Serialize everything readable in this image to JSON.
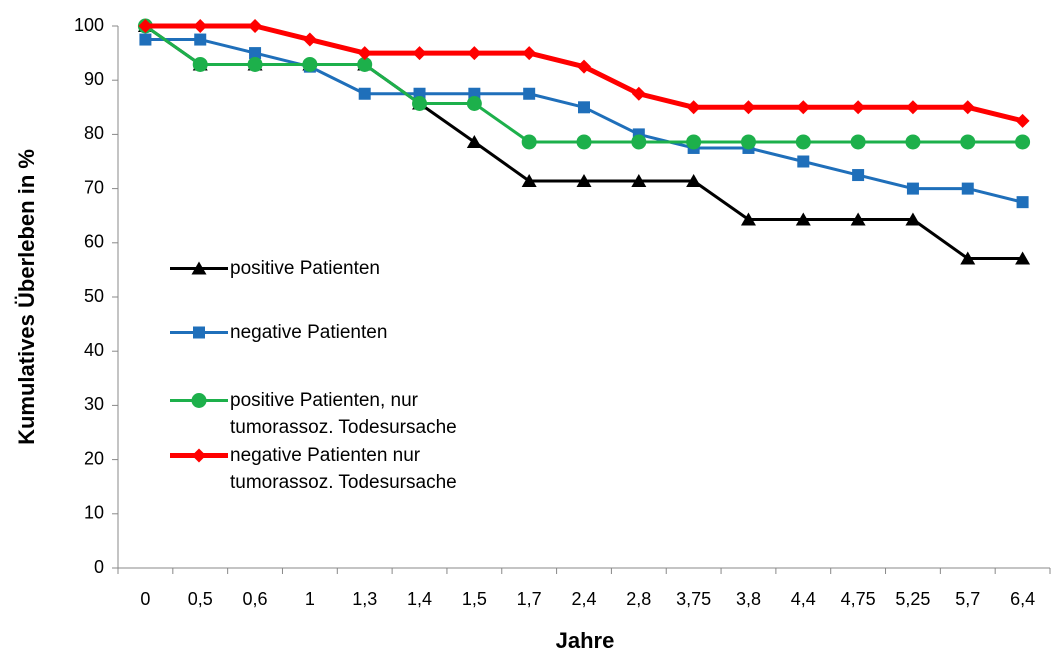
{
  "chart_data": {
    "type": "line",
    "xlabel": "Jahre",
    "ylabel": "Kumulatives Überleben in %",
    "categories": [
      "0",
      "0,5",
      "0,6",
      "1",
      "1,3",
      "1,4",
      "1,5",
      "1,7",
      "2,4",
      "2,8",
      "3,75",
      "3,8",
      "4,4",
      "4,75",
      "5,25",
      "5,7",
      "6,4"
    ],
    "series": [
      {
        "name": "positive Patienten",
        "color": "#000000",
        "marker": "triangle",
        "values": [
          100,
          92.9,
          92.9,
          92.9,
          92.9,
          85.7,
          78.6,
          71.4,
          71.4,
          71.4,
          71.4,
          64.3,
          64.3,
          64.3,
          64.3,
          57.1,
          57.1
        ]
      },
      {
        "name": "negative Patienten",
        "color": "#1f6fba",
        "marker": "square",
        "values": [
          97.5,
          97.5,
          95,
          92.5,
          87.5,
          87.5,
          87.5,
          87.5,
          85,
          80,
          77.5,
          77.5,
          75,
          72.5,
          70,
          70,
          67.5
        ]
      },
      {
        "name": "positive Patienten, nur tumorassoz. Todesursache",
        "color": "#1db04b",
        "marker": "circle",
        "values": [
          100,
          92.9,
          92.9,
          92.9,
          92.9,
          85.7,
          85.7,
          78.6,
          78.6,
          78.6,
          78.6,
          78.6,
          78.6,
          78.6,
          78.6,
          78.6,
          78.6
        ]
      },
      {
        "name": "negative Patienten nur tumorassoz. Todesursache",
        "color": "#ff0000",
        "marker": "diamond",
        "values": [
          100,
          100,
          100,
          97.5,
          95,
          95,
          95,
          95,
          92.5,
          87.5,
          85,
          85,
          85,
          85,
          85,
          85,
          82.5
        ]
      }
    ],
    "ylim": [
      0,
      100
    ],
    "yticks": [
      0,
      10,
      20,
      30,
      40,
      50,
      60,
      70,
      80,
      90,
      100
    ],
    "grid": false
  }
}
